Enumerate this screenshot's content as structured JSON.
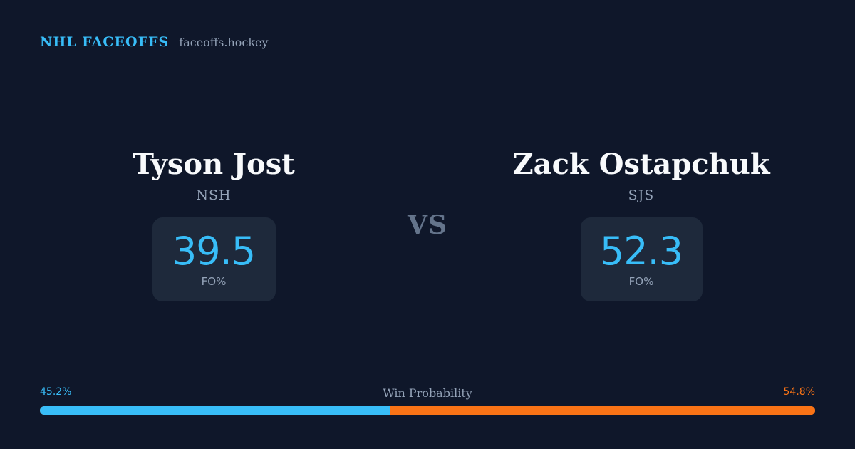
{
  "brand": {
    "title": "NHL FACEOFFS",
    "site": "faceoffs.hockey"
  },
  "player_left": {
    "name": "Tyson Jost",
    "team": "NSH",
    "fo_value": "39.5",
    "fo_label": "FO%"
  },
  "player_right": {
    "name": "Zack Ostapchuk",
    "team": "SJS",
    "fo_value": "52.3",
    "fo_label": "FO%"
  },
  "vs_label": "VS",
  "win_probability": {
    "title": "Win Probability",
    "left_label": "45.2%",
    "right_label": "54.8%",
    "left_fraction": 0.452,
    "right_fraction": 0.548
  },
  "colors": {
    "background": "#0f172a",
    "accent_left": "#38bdf8",
    "accent_right": "#f97316",
    "card": "#1e293b",
    "muted": "#94a3b8"
  }
}
